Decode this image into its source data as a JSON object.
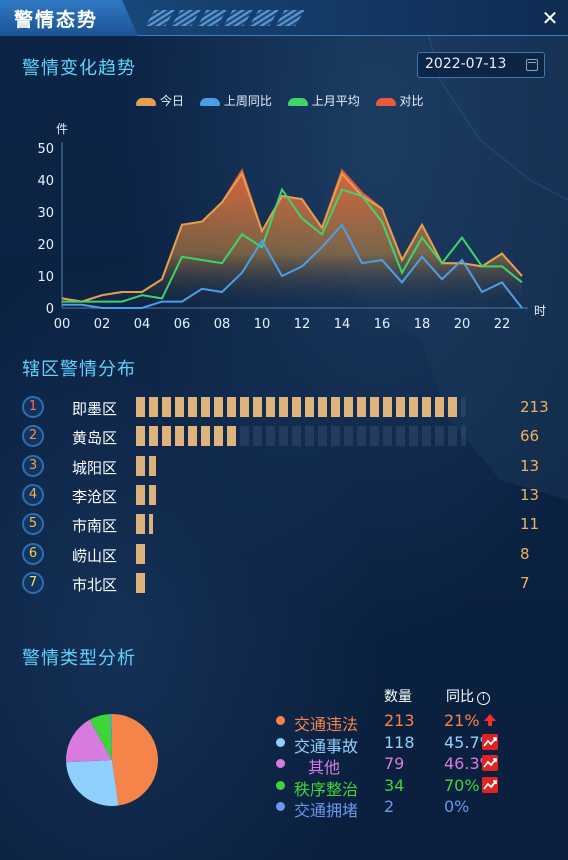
{
  "window": {
    "title": "警情态势",
    "close_glyph": "✕"
  },
  "trend": {
    "title": "警情变化趋势",
    "date": "2022-07-13",
    "legend": [
      {
        "name": "今日",
        "color": "#e0a050"
      },
      {
        "name": "上周同比",
        "color": "#4a9fe8"
      },
      {
        "name": "上月平均",
        "color": "#3fd46a"
      },
      {
        "name": "对比",
        "color": "#e85a3c"
      }
    ],
    "y_unit": "件",
    "x_unit": "时"
  },
  "chart_data": {
    "type": "area",
    "x": [
      0,
      1,
      2,
      3,
      4,
      5,
      6,
      7,
      8,
      9,
      10,
      11,
      12,
      13,
      14,
      15,
      16,
      17,
      18,
      19,
      20,
      21,
      22,
      23
    ],
    "x_ticks": [
      "00",
      "02",
      "04",
      "06",
      "08",
      "10",
      "12",
      "14",
      "16",
      "18",
      "20",
      "22"
    ],
    "y_ticks": [
      0,
      10,
      20,
      30,
      40,
      50
    ],
    "ylim": [
      0,
      50
    ],
    "ylabel": "件",
    "xlabel": "时",
    "series": [
      {
        "name": "今日",
        "color": "#e0a050",
        "values": [
          3,
          2,
          4,
          5,
          5,
          9,
          26,
          27,
          33,
          42,
          24,
          35,
          34,
          25,
          42,
          35,
          31,
          15,
          26,
          14,
          14,
          13,
          17,
          10
        ]
      },
      {
        "name": "上周同比",
        "color": "#4a9fe8",
        "values": [
          1,
          1,
          0,
          0,
          0,
          2,
          2,
          6,
          5,
          11,
          21,
          10,
          13,
          19,
          26,
          14,
          15,
          8,
          16,
          9,
          15,
          5,
          8,
          0
        ]
      },
      {
        "name": "上月平均",
        "color": "#3fd46a",
        "values": [
          2,
          2,
          2,
          2,
          4,
          3,
          16,
          15,
          14,
          23,
          19,
          37,
          28,
          23,
          37,
          35,
          27,
          11,
          22,
          14,
          22,
          13,
          13,
          8
        ]
      },
      {
        "name": "对比",
        "color": "#e85a3c",
        "values": [
          3,
          2,
          4,
          5,
          5,
          9,
          26,
          27,
          33,
          43,
          24,
          35,
          34,
          25,
          43,
          36,
          31,
          15,
          26,
          14,
          14,
          13,
          17,
          10
        ]
      }
    ]
  },
  "district": {
    "title": "辖区警情分布",
    "max": 213,
    "items": [
      {
        "rank": "1",
        "name": "即墨区",
        "value": 213,
        "rank_color": "#ff6a5a"
      },
      {
        "rank": "2",
        "name": "黄岛区",
        "value": 66,
        "rank_color": "#ff8a5a"
      },
      {
        "rank": "3",
        "name": "城阳区",
        "value": 13,
        "rank_color": "#f0a050"
      },
      {
        "rank": "4",
        "name": "李沧区",
        "value": 13,
        "rank_color": "#f0b050"
      },
      {
        "rank": "5",
        "name": "市南区",
        "value": 11,
        "rank_color": "#f0c050"
      },
      {
        "rank": "6",
        "name": "崂山区",
        "value": 8,
        "rank_color": "#f0d050"
      },
      {
        "rank": "7",
        "name": "市北区",
        "value": 7,
        "rank_color": "#f0e060"
      }
    ]
  },
  "types": {
    "title": "警情类型分析",
    "col_count": "数量",
    "col_yoy": "同比",
    "info_glyph": "i",
    "items": [
      {
        "name": "交通违法",
        "count": "213",
        "yoy": "21%",
        "color": "#f5844a",
        "trend": "up-arrow"
      },
      {
        "name": "交通事故",
        "count": "118",
        "yoy": "45.7%",
        "color": "#8fd0ff",
        "trend": "trend-badge"
      },
      {
        "name": "其他",
        "count": "79",
        "yoy": "46.3%",
        "color": "#d87be0",
        "trend": "trend-badge"
      },
      {
        "name": "秩序整治",
        "count": "34",
        "yoy": "70%",
        "color": "#3fd43a",
        "trend": "trend-badge"
      },
      {
        "name": "交通拥堵",
        "count": "2",
        "yoy": "0%",
        "color": "#6c96f0",
        "trend": "none"
      }
    ],
    "pie": [
      {
        "name": "交通违法",
        "value": 213,
        "color": "#f5844a"
      },
      {
        "name": "交通事故",
        "value": 118,
        "color": "#8fd0ff"
      },
      {
        "name": "其他",
        "value": 79,
        "color": "#d87be0"
      },
      {
        "name": "秩序整治",
        "value": 34,
        "color": "#3fd43a"
      },
      {
        "name": "交通拥堵",
        "value": 2,
        "color": "#6c96f0"
      }
    ]
  }
}
